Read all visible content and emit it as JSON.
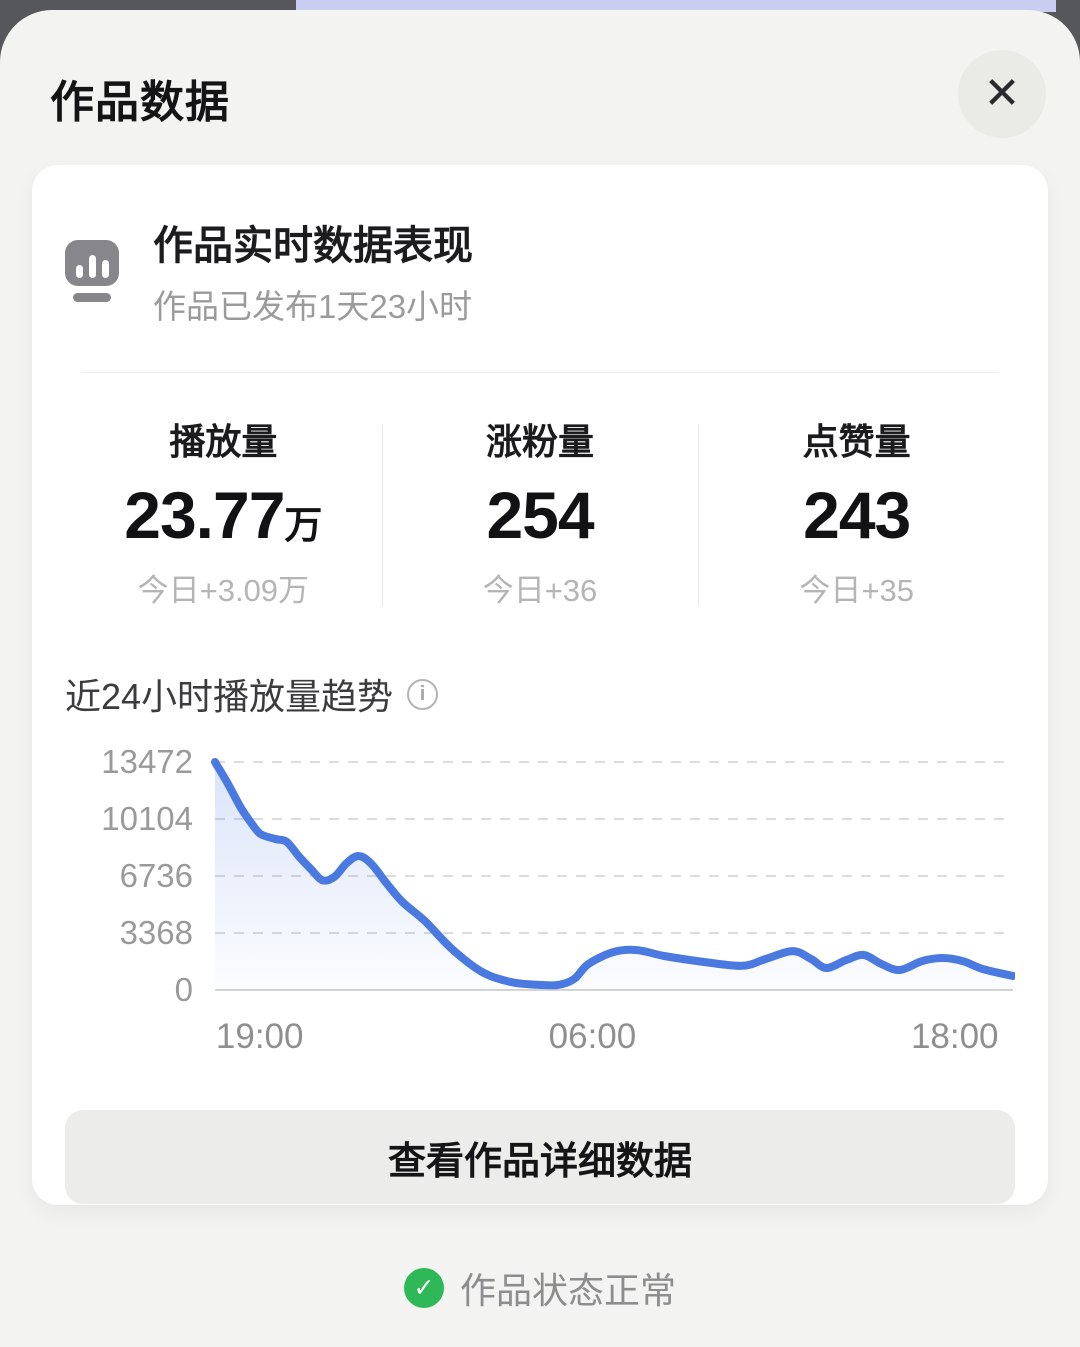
{
  "icons": {
    "close": "✕",
    "check": "✓",
    "info": "i"
  },
  "colors": {
    "line_blue": "#4a7ae0",
    "status_green": "#2fb857",
    "sheet_bg": "#f3f3f1",
    "card_bg": "#ffffff"
  },
  "modal": {
    "title": "作品数据"
  },
  "card": {
    "header": {
      "icon": "bar-chart-monitor-icon",
      "title": "作品实时数据表现",
      "subtitle": "作品已发布1天23小时"
    },
    "stats": [
      {
        "label": "播放量",
        "value": "23.77",
        "unit": "万",
        "delta": "今日+3.09万"
      },
      {
        "label": "涨粉量",
        "value": "254",
        "unit": "",
        "delta": "今日+36"
      },
      {
        "label": "点赞量",
        "value": "243",
        "unit": "",
        "delta": "今日+35"
      }
    ],
    "chart_title": "近24小时播放量趋势",
    "detail_button": "查看作品详细数据"
  },
  "status": {
    "text": "作品状态正常"
  },
  "chart_data": {
    "type": "area",
    "title": "近24小时播放量趋势",
    "ylabel": "播放量",
    "ylim": [
      0,
      13472
    ],
    "y_ticks": [
      13472,
      10104,
      6736,
      3368,
      0
    ],
    "x_ticks": [
      {
        "label": "19:00",
        "f": 0.056
      },
      {
        "label": "06:00",
        "f": 0.473
      },
      {
        "label": "18:00",
        "f": 0.927
      }
    ],
    "grid": "dashed-horizontal",
    "legend": "none",
    "line_color": "#4a7ae0",
    "points": [
      [
        0.0,
        13472
      ],
      [
        0.016,
        12200
      ],
      [
        0.032,
        10800
      ],
      [
        0.045,
        9900
      ],
      [
        0.057,
        9220
      ],
      [
        0.076,
        8920
      ],
      [
        0.09,
        8750
      ],
      [
        0.105,
        7900
      ],
      [
        0.12,
        7150
      ],
      [
        0.135,
        6480
      ],
      [
        0.15,
        6700
      ],
      [
        0.165,
        7500
      ],
      [
        0.18,
        7920
      ],
      [
        0.196,
        7450
      ],
      [
        0.215,
        6300
      ],
      [
        0.235,
        5200
      ],
      [
        0.263,
        4080
      ],
      [
        0.297,
        2420
      ],
      [
        0.335,
        1060
      ],
      [
        0.37,
        480
      ],
      [
        0.4,
        320
      ],
      [
        0.43,
        300
      ],
      [
        0.45,
        650
      ],
      [
        0.468,
        1540
      ],
      [
        0.5,
        2250
      ],
      [
        0.529,
        2360
      ],
      [
        0.563,
        2010
      ],
      [
        0.614,
        1650
      ],
      [
        0.661,
        1430
      ],
      [
        0.69,
        1830
      ],
      [
        0.724,
        2300
      ],
      [
        0.747,
        1830
      ],
      [
        0.766,
        1300
      ],
      [
        0.791,
        1770
      ],
      [
        0.813,
        2070
      ],
      [
        0.835,
        1540
      ],
      [
        0.858,
        1180
      ],
      [
        0.886,
        1710
      ],
      [
        0.911,
        1890
      ],
      [
        0.937,
        1710
      ],
      [
        0.962,
        1240
      ],
      [
        1.0,
        830
      ]
    ]
  }
}
